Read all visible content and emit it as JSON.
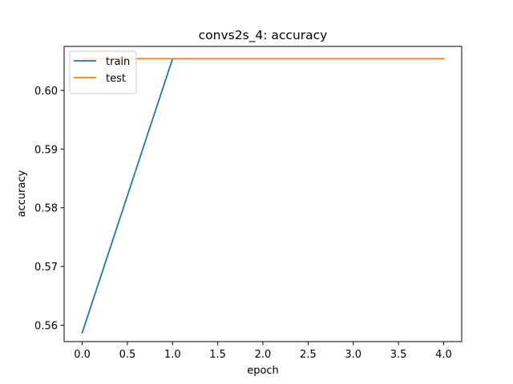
{
  "chart_data": {
    "type": "line",
    "title": "convs2s_4: accuracy",
    "xlabel": "epoch",
    "ylabel": "accuracy",
    "x": [
      0,
      1,
      2,
      3,
      4
    ],
    "xlim": [
      -0.2,
      4.2
    ],
    "ylim": [
      0.5572,
      0.6075
    ],
    "xticks": [
      0.0,
      0.5,
      1.0,
      1.5,
      2.0,
      2.5,
      3.0,
      3.5,
      4.0
    ],
    "xtick_labels": [
      "0.0",
      "0.5",
      "1.0",
      "1.5",
      "2.0",
      "2.5",
      "3.0",
      "3.5",
      "4.0"
    ],
    "yticks": [
      0.56,
      0.57,
      0.58,
      0.59,
      0.6
    ],
    "ytick_labels": [
      "0.56",
      "0.57",
      "0.58",
      "0.59",
      "0.60"
    ],
    "legend_position": "upper-left",
    "grid": false,
    "series": [
      {
        "name": "train",
        "color": "#1f77b4",
        "values": [
          0.5587,
          0.6054,
          0.6054,
          0.6054,
          0.6054
        ]
      },
      {
        "name": "test",
        "color": "#ff7f0e",
        "values": [
          0.6054,
          0.6054,
          0.6054,
          0.6054,
          0.6054
        ]
      }
    ]
  }
}
